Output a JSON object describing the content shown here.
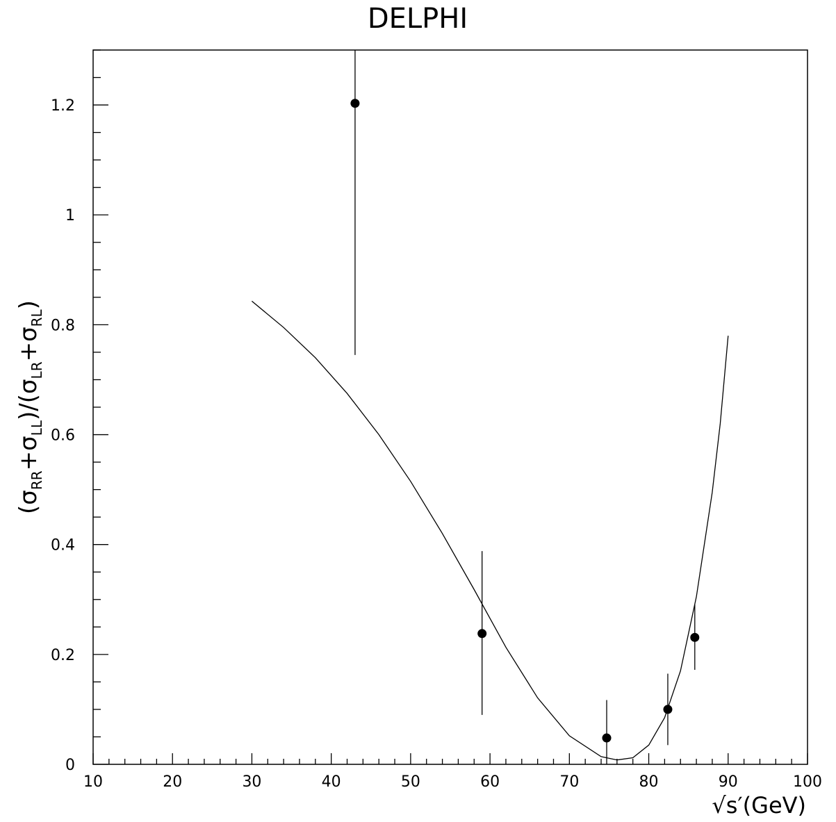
{
  "chart_data": {
    "type": "scatter",
    "title": "DELPHI",
    "xlabel": "√s′(GeV)",
    "ylabel": {
      "open": "(σ",
      "sub1": "RR",
      "plus1": "+σ",
      "sub2": "LL",
      "mid": ")/(σ",
      "sub3": "LR",
      "plus2": "+σ",
      "sub4": "RL",
      "close": ")"
    },
    "xlim": [
      10,
      100
    ],
    "ylim": [
      0,
      1.3
    ],
    "x_ticks": [
      10,
      20,
      30,
      40,
      50,
      60,
      70,
      80,
      90,
      100
    ],
    "x_tick_labels": [
      "10",
      "20",
      "30",
      "40",
      "50",
      "60",
      "70",
      "80",
      "90",
      "100"
    ],
    "y_ticks": [
      0,
      0.2,
      0.4,
      0.6,
      0.8,
      1.0,
      1.2
    ],
    "y_tick_labels": [
      "0",
      "0.2",
      "0.4",
      "0.6",
      "0.8",
      "1",
      "1.2"
    ],
    "grid": false,
    "points": [
      {
        "x": 43.0,
        "y": 1.203,
        "ylow": 0.745,
        "yhigh": 1.3
      },
      {
        "x": 59.0,
        "y": 0.238,
        "ylow": 0.09,
        "yhigh": 0.388
      },
      {
        "x": 74.7,
        "y": 0.048,
        "ylow": 0.0,
        "yhigh": 0.117
      },
      {
        "x": 82.4,
        "y": 0.1,
        "ylow": 0.035,
        "yhigh": 0.165
      },
      {
        "x": 85.8,
        "y": 0.231,
        "ylow": 0.172,
        "yhigh": 0.291
      }
    ],
    "curve": {
      "x": [
        30,
        34,
        38,
        42,
        46,
        50,
        54,
        58,
        62,
        66,
        70,
        74,
        76,
        78,
        80,
        82,
        84,
        86,
        88,
        89,
        90
      ],
      "y": [
        0.843,
        0.795,
        0.74,
        0.675,
        0.6,
        0.515,
        0.42,
        0.318,
        0.213,
        0.121,
        0.052,
        0.014,
        0.008,
        0.012,
        0.035,
        0.085,
        0.17,
        0.305,
        0.495,
        0.62,
        0.78
      ]
    }
  }
}
